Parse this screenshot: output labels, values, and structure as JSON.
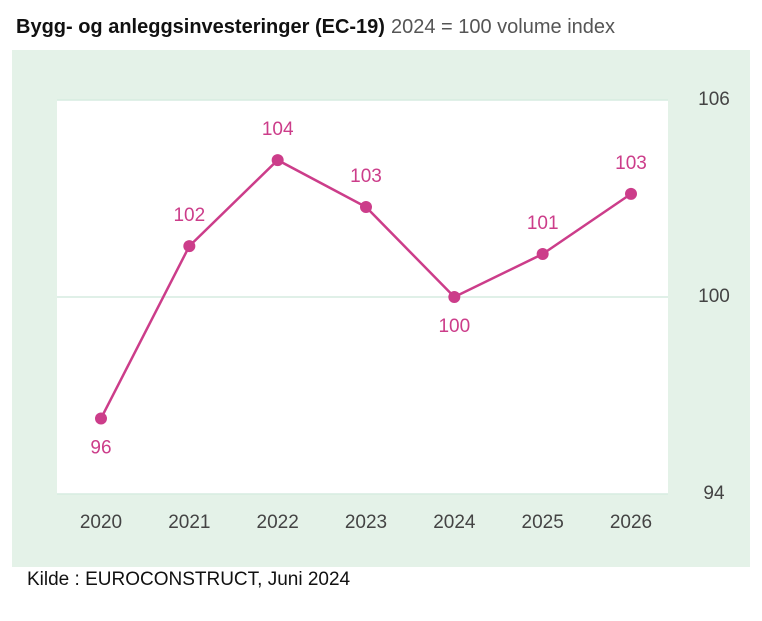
{
  "chart_data": {
    "type": "line",
    "title": "Bygg- og anleggsinvesteringer (EC-19)",
    "subtitle": "2024 = 100 volume index",
    "source": "Kilde : EUROCONSTRUCT, Juni 2024",
    "categories": [
      "2020",
      "2021",
      "2022",
      "2023",
      "2024",
      "2025",
      "2026"
    ],
    "values": [
      96.3,
      101.55,
      104.17,
      102.74,
      100,
      101.31,
      103.14
    ],
    "value_labels": [
      "96",
      "102",
      "104",
      "103",
      "100",
      "101",
      "103"
    ],
    "color": "#cc3d8a",
    "ylim": [
      94,
      106
    ],
    "yticks": [
      94,
      100,
      106
    ],
    "grid": true
  }
}
